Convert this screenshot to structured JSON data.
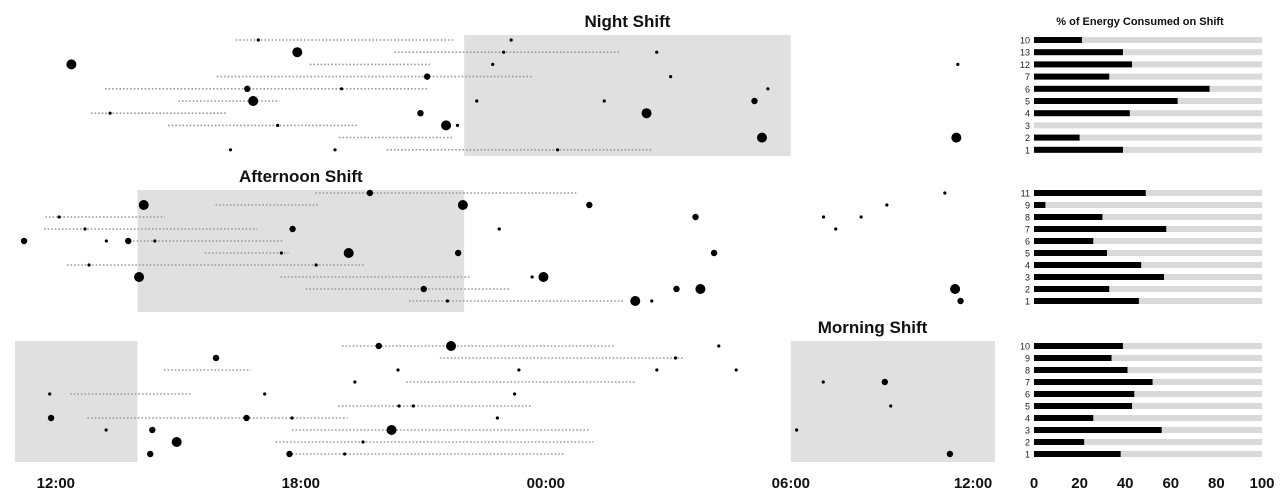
{
  "chart_data": {
    "type": "scatter",
    "bar_title": "% of Energy Consumed on Shift",
    "time_ticks": [
      "12:00",
      "18:00",
      "00:00",
      "06:00",
      "12:00"
    ],
    "pct_ticks": [
      "0",
      "20",
      "40",
      "60",
      "80",
      "100"
    ],
    "pct_range": [
      0,
      100
    ],
    "colors": {
      "shade": "#e0e0e0",
      "ink": "#000000",
      "track": "#d9d9d9",
      "dots": "#9a9a9a"
    },
    "panels": [
      {
        "title": "Night Shift",
        "title_pos": "top-center",
        "shift_window": [
          22,
          30
        ],
        "rows": [
          {
            "label": "10",
            "pct": 21
          },
          {
            "label": "13",
            "pct": 39
          },
          {
            "label": "12",
            "pct": 43
          },
          {
            "label": "7",
            "pct": 33
          },
          {
            "label": "6",
            "pct": 77
          },
          {
            "label": "5",
            "pct": 63
          },
          {
            "label": "4",
            "pct": 42
          },
          {
            "label": "3",
            "pct": 0
          },
          {
            "label": "2",
            "pct": 20
          },
          {
            "label": "1",
            "pct": 39
          }
        ]
      },
      {
        "title": "Afternoon Shift",
        "title_pos": "top-left",
        "shift_window": [
          14,
          22
        ],
        "rows": [
          {
            "label": "11",
            "pct": 49
          },
          {
            "label": "9",
            "pct": 5
          },
          {
            "label": "8",
            "pct": 30
          },
          {
            "label": "7",
            "pct": 58
          },
          {
            "label": "6",
            "pct": 26
          },
          {
            "label": "5",
            "pct": 32
          },
          {
            "label": "4",
            "pct": 47
          },
          {
            "label": "3",
            "pct": 57
          },
          {
            "label": "2",
            "pct": 33
          },
          {
            "label": "1",
            "pct": 46
          }
        ]
      },
      {
        "title": "Morning Shift",
        "title_pos": "top-right",
        "shift_window": [
          6,
          14
        ],
        "rows": [
          {
            "label": "10",
            "pct": 39
          },
          {
            "label": "9",
            "pct": 34
          },
          {
            "label": "8",
            "pct": 41
          },
          {
            "label": "7",
            "pct": 52
          },
          {
            "label": "6",
            "pct": 44
          },
          {
            "label": "5",
            "pct": 43
          },
          {
            "label": "4",
            "pct": 26
          },
          {
            "label": "3",
            "pct": 56
          },
          {
            "label": "2",
            "pct": 22
          },
          {
            "label": "1",
            "pct": 38
          }
        ]
      }
    ]
  }
}
